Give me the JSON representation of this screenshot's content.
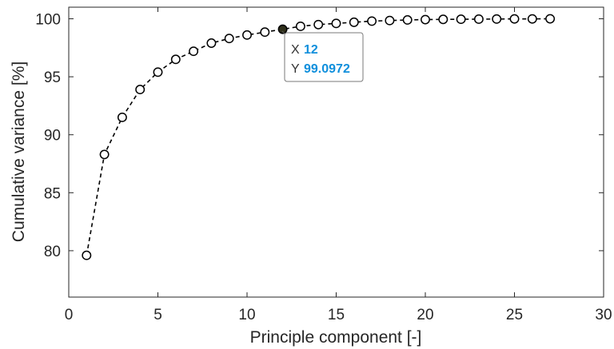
{
  "chart_data": {
    "type": "line",
    "title": "",
    "xlabel": "Principle component [-]",
    "ylabel": "Cumulative variance [%]",
    "xlim": [
      0,
      30
    ],
    "ylim": [
      76,
      101
    ],
    "xticks": [
      0,
      5,
      10,
      15,
      20,
      25,
      30
    ],
    "yticks": [
      80,
      85,
      90,
      95,
      100
    ],
    "grid": false,
    "line_style": "dashed",
    "marker": "open-circle",
    "color": "#000000",
    "series": [
      {
        "x": [
          1,
          2,
          3,
          4,
          5,
          6,
          7,
          8,
          9,
          10,
          11,
          12,
          13,
          14,
          15,
          16,
          17,
          18,
          19,
          20,
          21,
          22,
          23,
          24,
          25,
          26,
          27
        ],
        "values": [
          79.6,
          88.3,
          91.5,
          93.9,
          95.4,
          96.5,
          97.2,
          97.9,
          98.3,
          98.6,
          98.85,
          99.0972,
          99.35,
          99.5,
          99.6,
          99.7,
          99.8,
          99.85,
          99.9,
          99.93,
          99.95,
          99.96,
          99.97,
          99.98,
          99.99,
          99.99,
          100.0
        ]
      }
    ],
    "datatip": {
      "x_key": "X",
      "x_value": "12",
      "y_key": "Y",
      "y_value": "99.0972",
      "value_color": "#0f8fdc"
    }
  }
}
